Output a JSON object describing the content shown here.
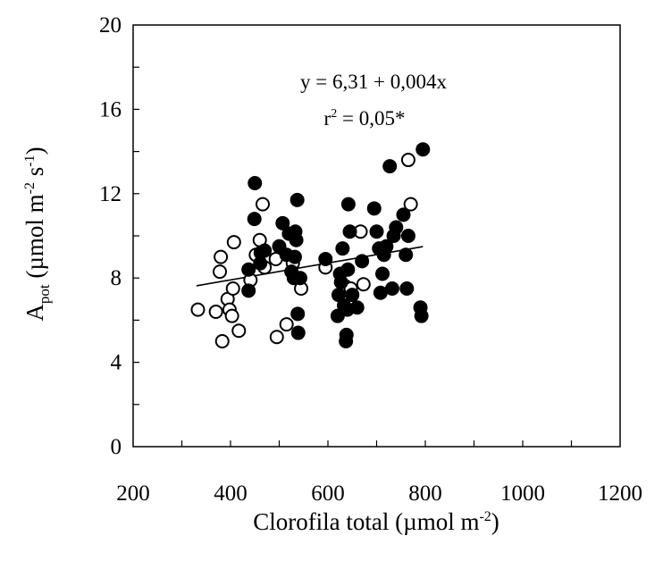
{
  "chart_data": {
    "type": "scatter",
    "title": "",
    "xlabel_main": "Clorofila total (µmol m",
    "xlabel_exp": "-2",
    "xlabel_close": ")",
    "ylabel_main": "A",
    "ylabel_sub": "pot",
    "ylabel_mid": " (µmol m",
    "ylabel_exp1": "-2",
    "ylabel_s": " s",
    "ylabel_exp2": "-1",
    "ylabel_close": ")",
    "xlim": [
      200,
      1200
    ],
    "ylim": [
      0,
      20
    ],
    "x_ticks": [
      "200",
      "400",
      "600",
      "800",
      "1000",
      "1200"
    ],
    "y_ticks": [
      "0",
      "4",
      "8",
      "12",
      "16",
      "20"
    ],
    "grid": false,
    "annotation_line1": "y = 6,31 +  0,004x",
    "annotation_r": "r",
    "annotation_r_exp": "2",
    "annotation_r_rest": " = 0,05*",
    "regression": {
      "intercept": 6.31,
      "slope": 0.004,
      "x_range": [
        330,
        795
      ]
    },
    "series": [
      {
        "marker": "open-circle",
        "points": [
          [
            333,
            6.5
          ],
          [
            370,
            6.4
          ],
          [
            378,
            8.3
          ],
          [
            380,
            9.0
          ],
          [
            383,
            5.0
          ],
          [
            394,
            7.0
          ],
          [
            398,
            6.5
          ],
          [
            403,
            6.2
          ],
          [
            405,
            7.5
          ],
          [
            407,
            9.7
          ],
          [
            417,
            5.5
          ],
          [
            441,
            7.9
          ],
          [
            452,
            9.1
          ],
          [
            460,
            9.8
          ],
          [
            466,
            11.5
          ],
          [
            470,
            8.5
          ],
          [
            493,
            8.9
          ],
          [
            495,
            5.2
          ],
          [
            515,
            5.8
          ],
          [
            528,
            8.7
          ],
          [
            545,
            7.5
          ],
          [
            595,
            8.5
          ],
          [
            636,
            7.6
          ],
          [
            647,
            7.5
          ],
          [
            667,
            10.2
          ],
          [
            673,
            7.7
          ],
          [
            765,
            13.6
          ],
          [
            770,
            11.5
          ]
        ]
      },
      {
        "marker": "filled-circle",
        "points": [
          [
            437,
            7.4
          ],
          [
            437,
            8.4
          ],
          [
            449,
            10.8
          ],
          [
            450,
            12.5
          ],
          [
            461,
            8.7
          ],
          [
            462,
            9.2
          ],
          [
            470,
            9.3
          ],
          [
            500,
            9.5
          ],
          [
            507,
            10.6
          ],
          [
            515,
            9.1
          ],
          [
            520,
            10.1
          ],
          [
            525,
            8.3
          ],
          [
            530,
            8.0
          ],
          [
            532,
            9.0
          ],
          [
            533,
            10.2
          ],
          [
            535,
            9.8
          ],
          [
            537,
            11.7
          ],
          [
            538,
            6.3
          ],
          [
            539,
            5.4
          ],
          [
            543,
            8.0
          ],
          [
            595,
            8.9
          ],
          [
            620,
            6.2
          ],
          [
            622,
            7.2
          ],
          [
            625,
            8.2
          ],
          [
            627,
            7.8
          ],
          [
            630,
            9.4
          ],
          [
            633,
            6.7
          ],
          [
            637,
            5.0
          ],
          [
            638,
            5.3
          ],
          [
            640,
            6.5
          ],
          [
            641,
            8.4
          ],
          [
            642,
            11.5
          ],
          [
            645,
            10.2
          ],
          [
            650,
            7.2
          ],
          [
            660,
            6.6
          ],
          [
            670,
            8.8
          ],
          [
            695,
            11.3
          ],
          [
            700,
            10.2
          ],
          [
            705,
            9.4
          ],
          [
            708,
            7.3
          ],
          [
            712,
            8.2
          ],
          [
            715,
            9.1
          ],
          [
            720,
            9.5
          ],
          [
            727,
            13.3
          ],
          [
            732,
            7.5
          ],
          [
            735,
            10.0
          ],
          [
            740,
            10.4
          ],
          [
            755,
            11.0
          ],
          [
            760,
            9.1
          ],
          [
            762,
            7.5
          ],
          [
            765,
            10.0
          ],
          [
            790,
            6.6
          ],
          [
            792,
            6.2
          ],
          [
            795,
            14.1
          ]
        ]
      }
    ]
  }
}
